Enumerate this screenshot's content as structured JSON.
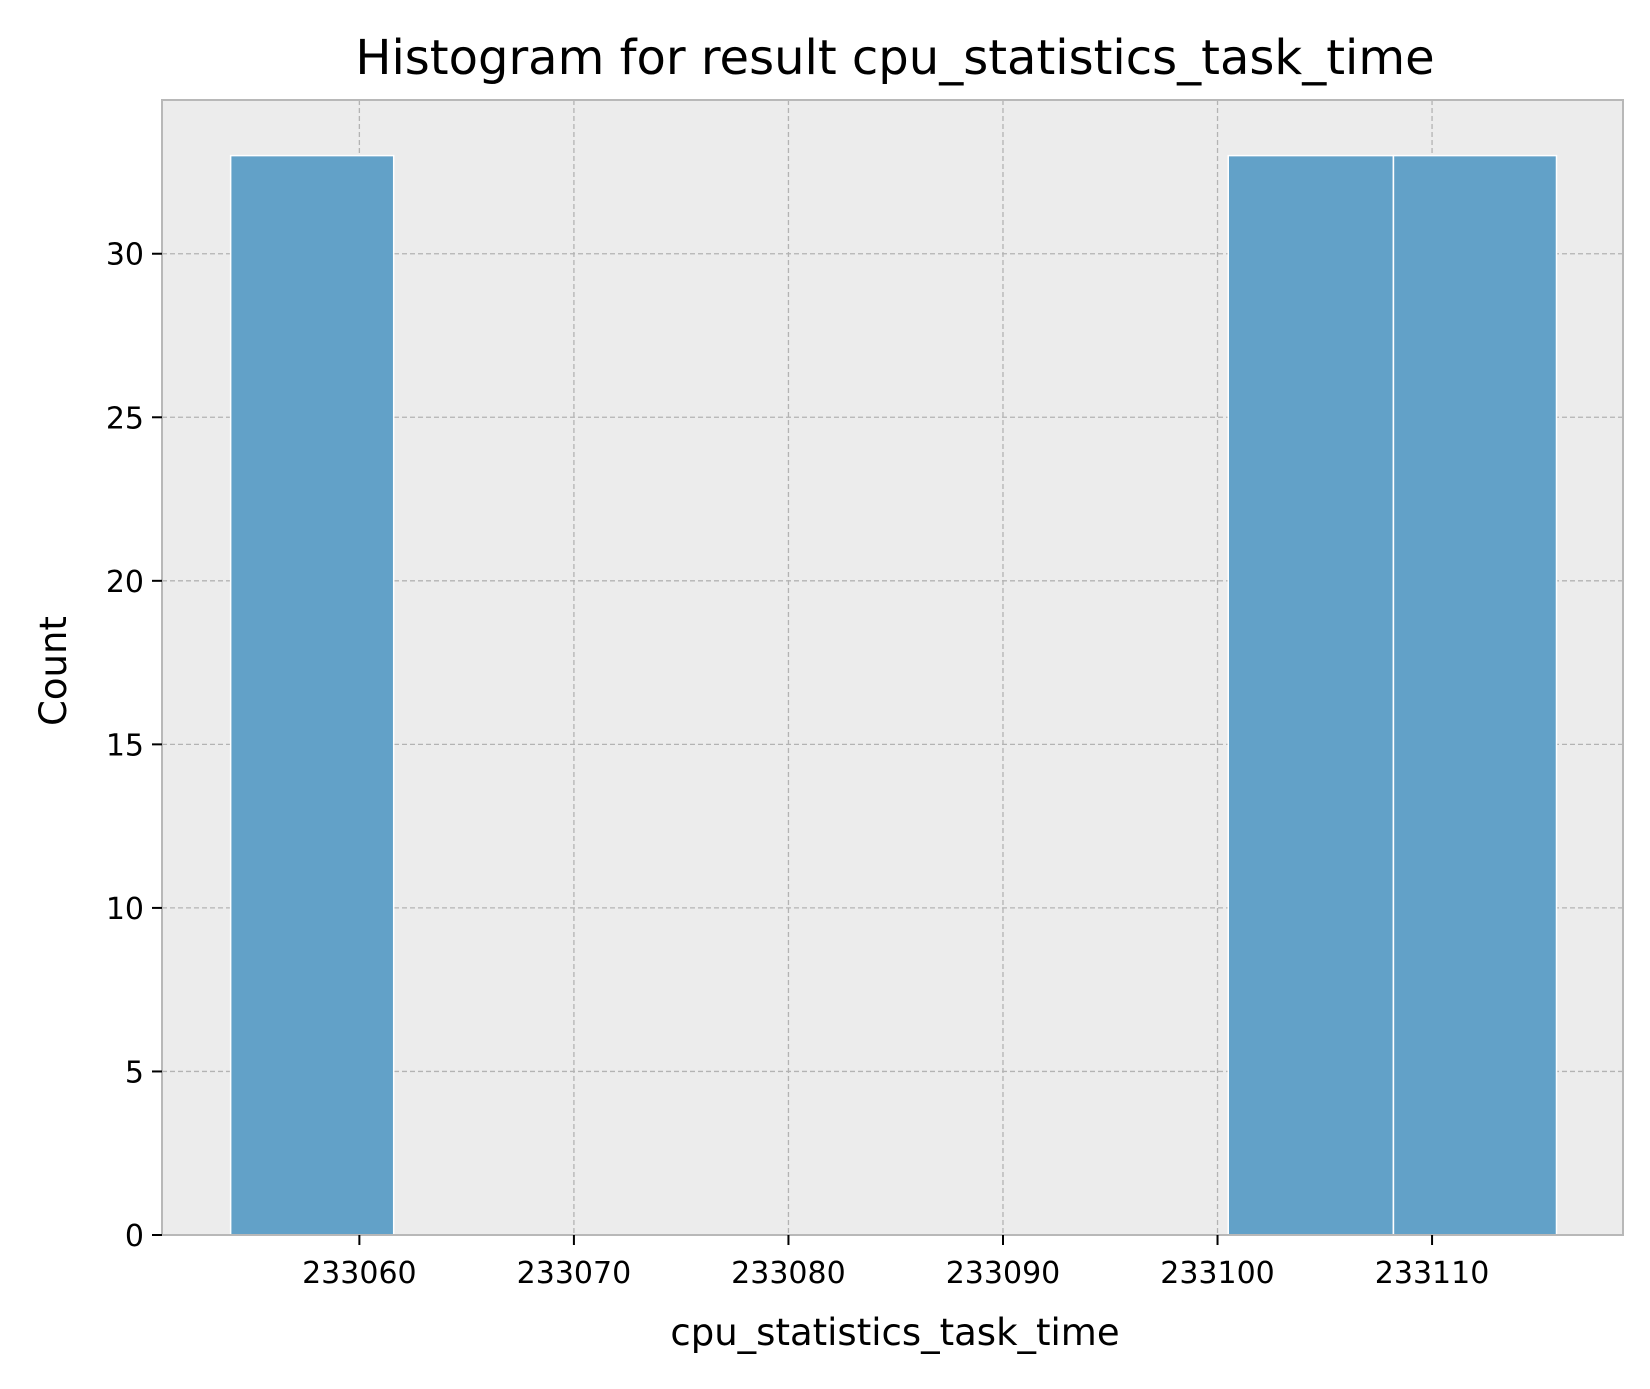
{
  "chart_data": {
    "type": "bar",
    "title": "Histogram for result cpu_statistics_task_time",
    "xlabel": "cpu_statistics_task_time",
    "ylabel": "Count",
    "xlim": [
      233050.8,
      233118.9
    ],
    "ylim": [
      0,
      34.7
    ],
    "x_ticks": [
      233060,
      233070,
      233080,
      233090,
      233100,
      233110
    ],
    "x_tick_labels": [
      "233060",
      "233070",
      "233080",
      "233090",
      "233100",
      "233110"
    ],
    "y_ticks": [
      0,
      5,
      10,
      15,
      20,
      25,
      30
    ],
    "y_tick_labels": [
      "0",
      "5",
      "10",
      "15",
      "20",
      "25",
      "30"
    ],
    "bins": [
      {
        "x_start": 233054.0,
        "x_end": 233061.6,
        "count": 33
      },
      {
        "x_start": 233100.5,
        "x_end": 233108.2,
        "count": 33
      },
      {
        "x_start": 233108.2,
        "x_end": 233115.8,
        "count": 33
      }
    ],
    "grid": true,
    "colors": {
      "bar": "#62a1c8",
      "plot_background": "#ececec",
      "grid": "#b3b3b3",
      "frame": "#b8b8b8"
    }
  }
}
